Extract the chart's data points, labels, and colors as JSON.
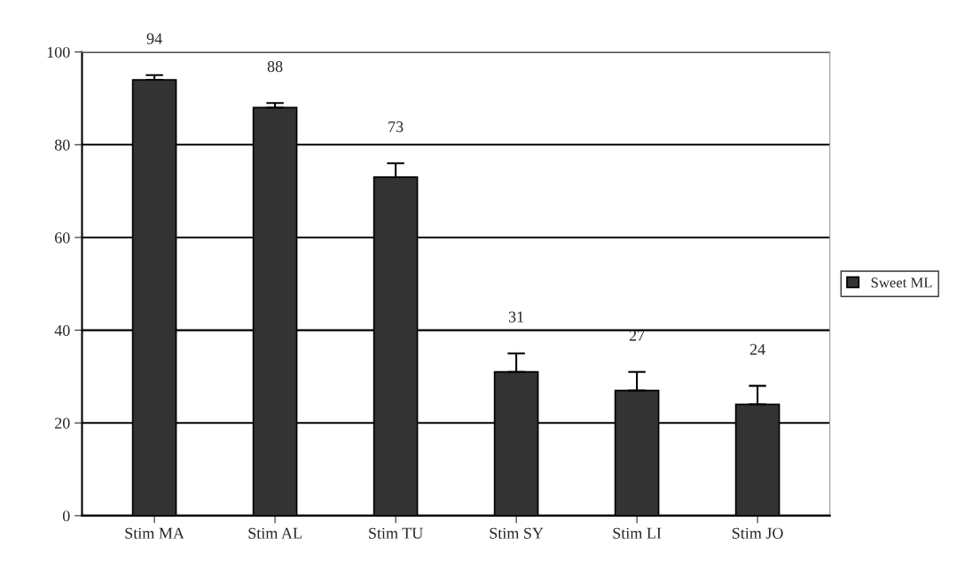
{
  "chart_data": {
    "type": "bar",
    "categories": [
      "Stim MA",
      "Stim AL",
      "Stim TU",
      "Stim SY",
      "Stim LI",
      "Stim JO"
    ],
    "series": [
      {
        "name": "Sweet ML",
        "color": "#333333",
        "values": [
          94,
          88,
          73,
          31,
          27,
          24
        ],
        "errors": [
          [
            94,
            95
          ],
          [
            88,
            89
          ],
          [
            73,
            76
          ],
          [
            31,
            35
          ],
          [
            27,
            31
          ],
          [
            24,
            28
          ]
        ]
      }
    ],
    "ylim": [
      0,
      100
    ],
    "yticks": [
      0,
      20,
      40,
      60,
      80,
      100
    ],
    "grid": "y",
    "legend": "right",
    "data_labels": true
  }
}
